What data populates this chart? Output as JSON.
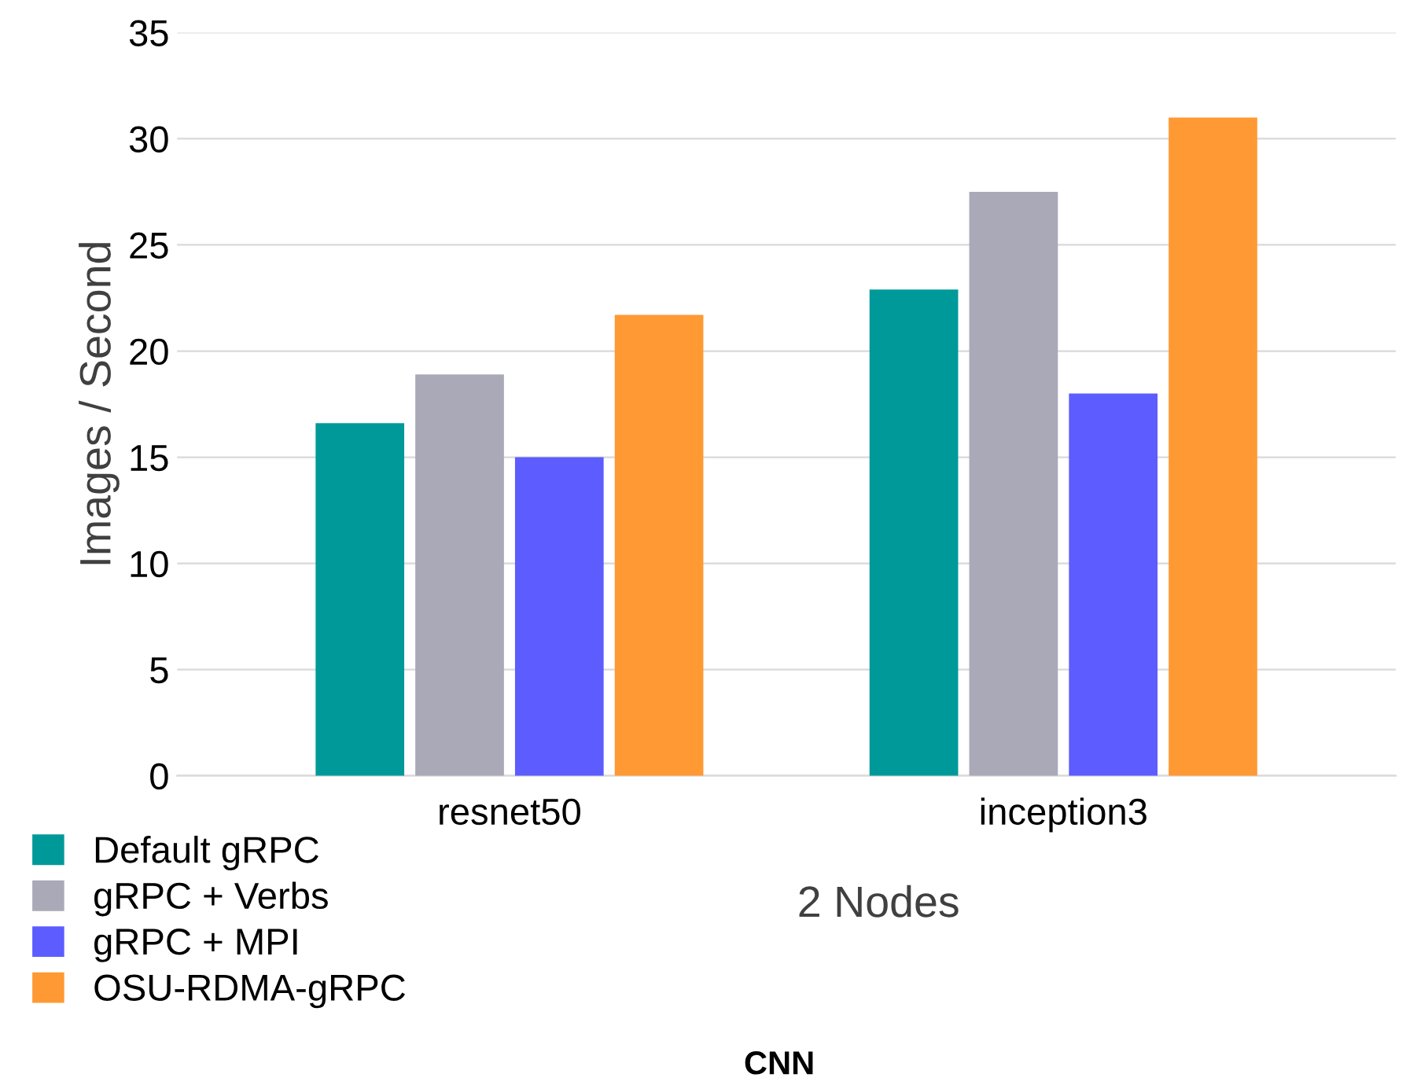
{
  "chart_data": {
    "type": "bar",
    "xlabel": "2 Nodes",
    "ylabel": "Images / Second",
    "categories": [
      "resnet50",
      "inception3"
    ],
    "series": [
      {
        "name": "Default gRPC",
        "color": "#009999",
        "values": [
          16.6,
          22.9
        ]
      },
      {
        "name": "gRPC + Verbs",
        "color": "#a9a9b8",
        "values": [
          18.9,
          27.5
        ]
      },
      {
        "name": "gRPC + MPI",
        "color": "#5c5cff",
        "values": [
          15.0,
          18.0
        ]
      },
      {
        "name": "OSU-RDMA-gRPC",
        "color": "#ff9933",
        "values": [
          21.7,
          31.0
        ]
      }
    ],
    "ylim": [
      0,
      35
    ],
    "yticks": [
      0,
      5,
      10,
      15,
      20,
      25,
      30,
      35
    ],
    "grid": "y",
    "legend": "bottom left",
    "annotations": [
      "CNN"
    ]
  }
}
